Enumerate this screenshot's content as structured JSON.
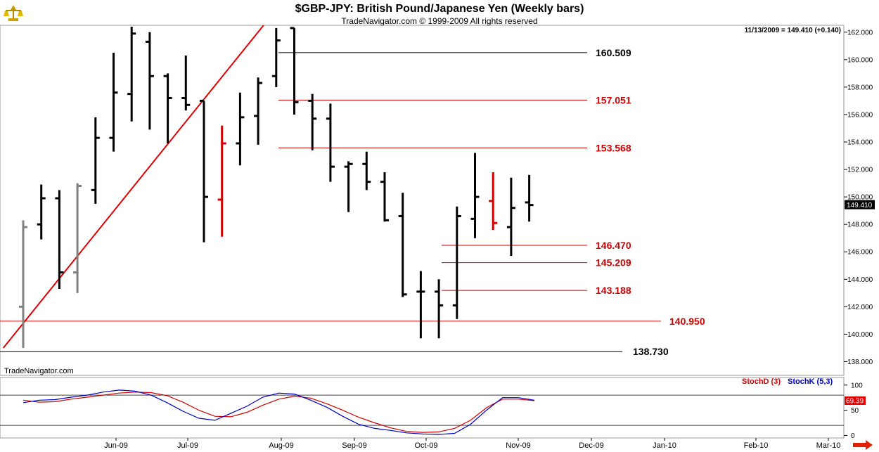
{
  "header": {
    "title": "$GBP-JPY:  British Pound/Japanese Yen  (Weekly bars)",
    "copyright": "TradeNavigator.com © 1999-2009 All rights reserved",
    "quote": "11/13/2009 = 149.410 (+0.140)",
    "brand": "TradeNavigator.com"
  },
  "colors": {
    "up": "#000000",
    "down": "#d00000",
    "gray": "#808080",
    "stoch_d": "#d00000",
    "stoch_k": "#0000c8",
    "level_red": "#d00000"
  },
  "icons": {
    "logo": "scale-icon",
    "next": "arrow-right-icon"
  },
  "chart_data": [
    {
      "type": "ohlc",
      "title": "$GBP-JPY:  British Pound/Japanese Yen  (Weekly bars)",
      "ylim": [
        137.0,
        162.5
      ],
      "y_ticks": [
        "138.000",
        "140.000",
        "142.000",
        "144.000",
        "146.000",
        "148.000",
        "150.000",
        "152.000",
        "154.000",
        "156.000",
        "158.000",
        "160.000",
        "162.000"
      ],
      "last_price_label": "149.410",
      "x_labels": [
        "Jun-09",
        "Jul-09",
        "Aug-09",
        "Sep-09",
        "Oct-09",
        "Nov-09",
        "Dec-09",
        "Jan-10",
        "Feb-10",
        "Mar-10"
      ],
      "bars": [
        {
          "o": 142.0,
          "h": 148.3,
          "l": 139.0,
          "c": 147.8,
          "color": "gray"
        },
        {
          "o": 148.0,
          "h": 150.9,
          "l": 146.9,
          "c": 149.9,
          "color": "black"
        },
        {
          "o": 149.9,
          "h": 150.5,
          "l": 143.3,
          "c": 144.5,
          "color": "black"
        },
        {
          "o": 144.5,
          "h": 151.0,
          "l": 143.0,
          "c": 150.8,
          "color": "gray"
        },
        {
          "o": 150.5,
          "h": 155.8,
          "l": 149.5,
          "c": 154.3,
          "color": "black"
        },
        {
          "o": 154.3,
          "h": 160.5,
          "l": 153.3,
          "c": 157.6,
          "color": "black"
        },
        {
          "o": 157.5,
          "h": 162.4,
          "l": 155.5,
          "c": 161.9,
          "color": "black"
        },
        {
          "o": 161.3,
          "h": 162.0,
          "l": 154.9,
          "c": 158.8,
          "color": "black"
        },
        {
          "o": 158.8,
          "h": 159.0,
          "l": 153.9,
          "c": 157.2,
          "color": "black"
        },
        {
          "o": 157.2,
          "h": 160.3,
          "l": 156.3,
          "c": 156.7,
          "color": "black"
        },
        {
          "o": 157.0,
          "h": 157.0,
          "l": 146.7,
          "c": 150.0,
          "color": "black"
        },
        {
          "o": 149.8,
          "h": 155.2,
          "l": 147.1,
          "c": 153.9,
          "color": "red"
        },
        {
          "o": 153.9,
          "h": 157.6,
          "l": 152.3,
          "c": 155.8,
          "color": "black"
        },
        {
          "o": 155.9,
          "h": 158.7,
          "l": 153.8,
          "c": 158.3,
          "color": "black"
        },
        {
          "o": 158.8,
          "h": 162.3,
          "l": 158.0,
          "c": 161.4,
          "color": "black"
        },
        {
          "o": 162.3,
          "h": 162.3,
          "l": 156.0,
          "c": 156.9,
          "color": "black"
        },
        {
          "o": 157.0,
          "h": 157.5,
          "l": 153.4,
          "c": 155.7,
          "color": "black"
        },
        {
          "o": 155.7,
          "h": 156.8,
          "l": 151.1,
          "c": 152.2,
          "color": "black"
        },
        {
          "o": 152.2,
          "h": 152.6,
          "l": 148.9,
          "c": 152.4,
          "color": "black"
        },
        {
          "o": 152.4,
          "h": 153.3,
          "l": 150.5,
          "c": 151.1,
          "color": "black"
        },
        {
          "o": 151.1,
          "h": 151.8,
          "l": 148.2,
          "c": 148.3,
          "color": "black"
        },
        {
          "o": 148.6,
          "h": 150.3,
          "l": 142.7,
          "c": 142.9,
          "color": "black"
        },
        {
          "o": 143.1,
          "h": 144.6,
          "l": 139.7,
          "c": 143.1,
          "color": "black"
        },
        {
          "o": 143.1,
          "h": 144.0,
          "l": 139.7,
          "c": 142.1,
          "color": "black"
        },
        {
          "o": 142.1,
          "h": 149.3,
          "l": 141.1,
          "c": 148.6,
          "color": "black"
        },
        {
          "o": 148.4,
          "h": 153.2,
          "l": 147.0,
          "c": 150.0,
          "color": "black"
        },
        {
          "o": 149.7,
          "h": 151.8,
          "l": 147.6,
          "c": 148.1,
          "color": "red"
        },
        {
          "o": 147.8,
          "h": 151.4,
          "l": 145.7,
          "c": 149.2,
          "color": "black"
        },
        {
          "o": 149.6,
          "h": 151.6,
          "l": 148.2,
          "c": 149.41,
          "color": "black"
        }
      ],
      "levels": [
        {
          "value": 160.509,
          "label": "160.509",
          "color": "black"
        },
        {
          "value": 157.051,
          "label": "157.051",
          "color": "red"
        },
        {
          "value": 153.568,
          "label": "153.568",
          "color": "red"
        },
        {
          "value": 146.47,
          "label": "146.470",
          "color": "red"
        },
        {
          "value": 145.209,
          "label": "145.209",
          "color": "red"
        },
        {
          "value": 143.188,
          "label": "143.188",
          "color": "red"
        },
        {
          "value": 140.95,
          "label": "140.950",
          "color": "red"
        },
        {
          "value": 138.73,
          "label": "138.730",
          "color": "black"
        }
      ],
      "trendline": {
        "from": {
          "bar": -1.1,
          "price": 139.0
        },
        "to": {
          "bar": 13.3,
          "price": 162.5
        }
      }
    },
    {
      "type": "line",
      "ylim": [
        -5,
        115
      ],
      "y_ticks": [
        "0",
        "50",
        "100"
      ],
      "reference_lines": [
        20,
        80
      ],
      "last_value_label": "69.39",
      "series": [
        {
          "name": "StochD (3)",
          "color": "stoch_d",
          "values": [
            70,
            66,
            67,
            72,
            76,
            80,
            84,
            86,
            85,
            79,
            66,
            50,
            38,
            37,
            46,
            60,
            72,
            78,
            74,
            63,
            50,
            36,
            25,
            15,
            8,
            6,
            7,
            14,
            30,
            55,
            72,
            72,
            69
          ]
        },
        {
          "name": "StochK (5,3)",
          "color": "stoch_k",
          "values": [
            65,
            70,
            71,
            76,
            80,
            86,
            90,
            88,
            80,
            65,
            48,
            34,
            30,
            44,
            58,
            76,
            84,
            82,
            70,
            56,
            38,
            22,
            14,
            10,
            5,
            3,
            2,
            4,
            22,
            50,
            75,
            75,
            70
          ]
        }
      ]
    }
  ]
}
